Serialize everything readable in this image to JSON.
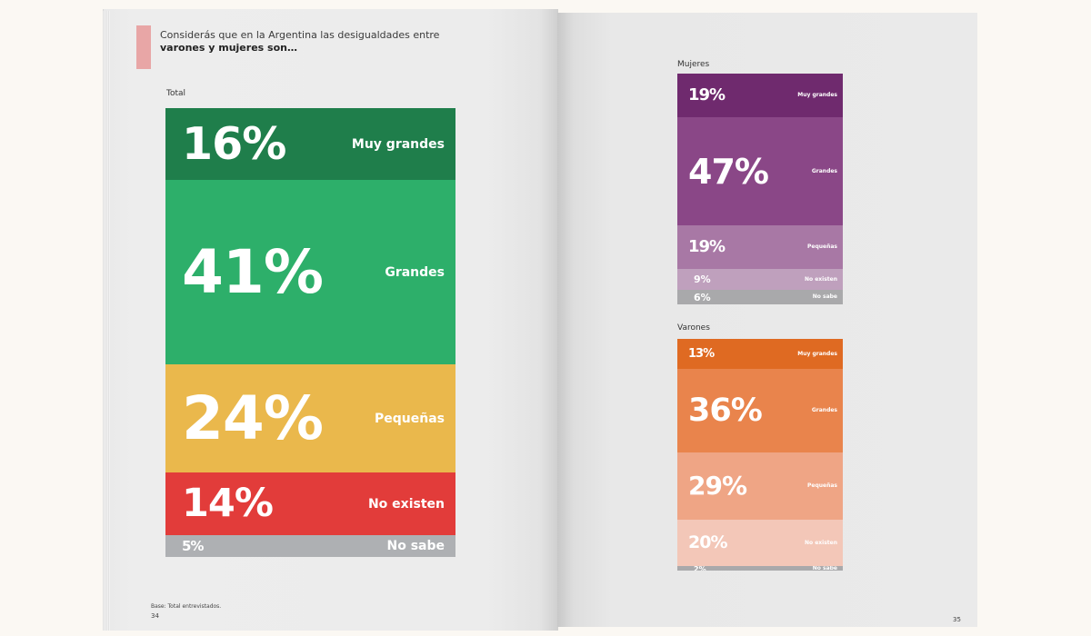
{
  "question": {
    "line1": "Considerás que en la Argentina las desigualdades entre",
    "line2": "varones y mujeres son…"
  },
  "footer": {
    "note": "Base: Total entrevistados.",
    "page_left": "34",
    "page_right": "35"
  },
  "chart_data": [
    {
      "type": "bar",
      "title": "Total",
      "categories": [
        "Muy grandes",
        "Grandes",
        "Pequeñas",
        "No existen",
        "No sabe"
      ],
      "values": [
        16,
        41,
        24,
        14,
        5
      ],
      "labels": [
        "16%",
        "41%",
        "24%",
        "14%",
        "5%"
      ],
      "colors": [
        "#1f7e4b",
        "#2daf6a",
        "#eab84c",
        "#e23c3a",
        "#aeb0b3"
      ]
    },
    {
      "type": "bar",
      "title": "Mujeres",
      "categories": [
        "Muy grandes",
        "Grandes",
        "Pequeñas",
        "No existen",
        "No sabe"
      ],
      "values": [
        19,
        47,
        19,
        9,
        6
      ],
      "labels": [
        "19%",
        "47%",
        "19%",
        "9%",
        "6%"
      ],
      "colors": [
        "#6f2a6e",
        "#8a4787",
        "#a878a5",
        "#bfa0bd",
        "#a9a9ab"
      ]
    },
    {
      "type": "bar",
      "title": "Varones",
      "categories": [
        "Muy grandes",
        "Grandes",
        "Pequeñas",
        "No existen",
        "No sabe"
      ],
      "values": [
        13,
        36,
        29,
        20,
        2
      ],
      "labels": [
        "13%",
        "36%",
        "29%",
        "20%",
        "2%"
      ],
      "colors": [
        "#df6a22",
        "#e9844c",
        "#efa585",
        "#f3c7b8",
        "#a9a9ab"
      ]
    }
  ]
}
